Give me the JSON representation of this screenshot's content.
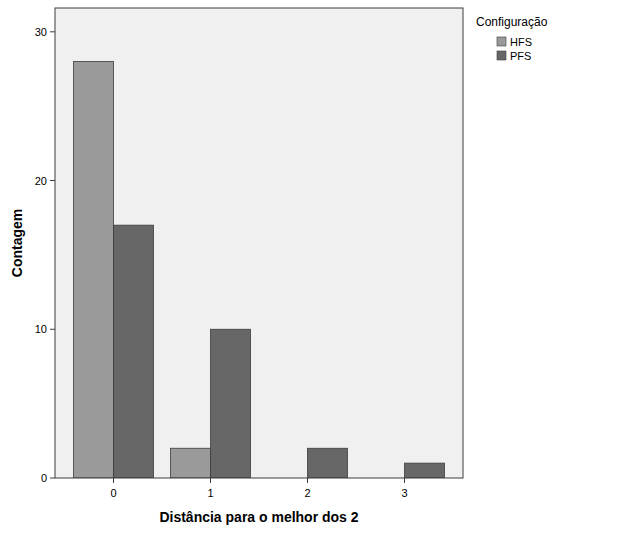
{
  "chart_data": {
    "type": "bar",
    "x_label": "Distância para o melhor dos 2",
    "y_label": "Contagem",
    "legend_title": "Configuração",
    "categories": [
      "0",
      "1",
      "2",
      "3"
    ],
    "series": [
      {
        "name": "HFS",
        "color": "#9a9a9a",
        "values": [
          28,
          2,
          0,
          0
        ]
      },
      {
        "name": "PFS",
        "color": "#676767",
        "values": [
          17,
          10,
          2,
          1
        ]
      }
    ],
    "ylim": [
      0,
      31.6
    ],
    "yticks": [
      0,
      10,
      20,
      30
    ],
    "grid": false,
    "legend": "right"
  }
}
